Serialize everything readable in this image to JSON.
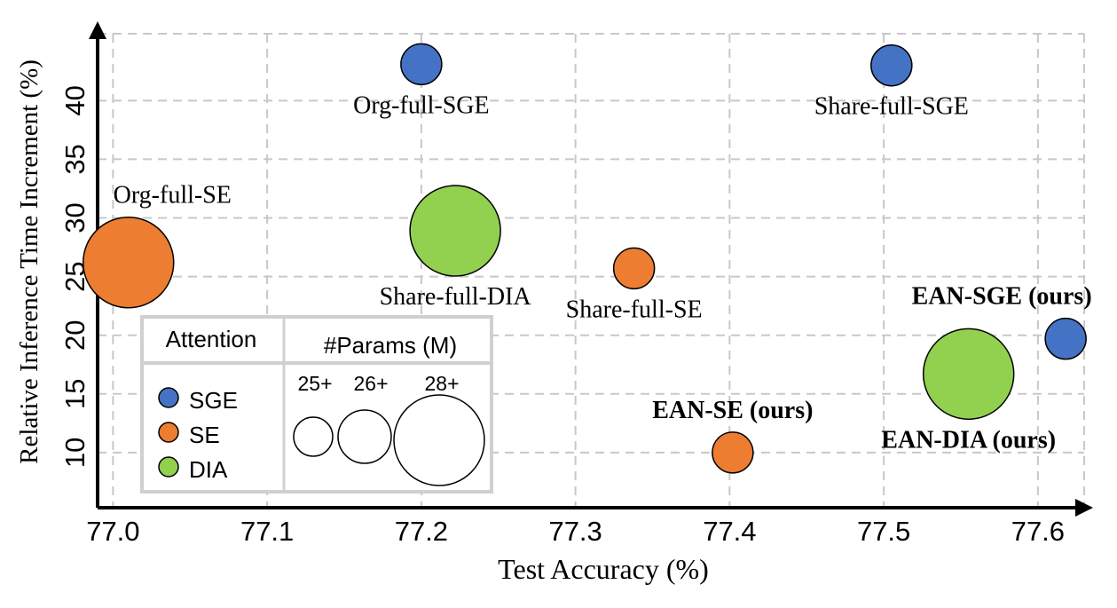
{
  "chart_data": {
    "type": "scatter",
    "subtype": "bubble",
    "xlabel": "Test Accuracy (%)",
    "ylabel": "Relative Inference Time Increment (%)",
    "xlim": [
      76.99,
      77.63
    ],
    "ylim": [
      5.3,
      45.7
    ],
    "xticks": [
      77.0,
      77.1,
      77.2,
      77.3,
      77.4,
      77.5,
      77.6
    ],
    "xtick_labels": [
      "77.0",
      "77.1",
      "77.2",
      "77.3",
      "77.4",
      "77.5",
      "77.6"
    ],
    "yticks": [
      10,
      15,
      20,
      25,
      30,
      35,
      40
    ],
    "ytick_labels": [
      "10",
      "15",
      "20",
      "25",
      "30",
      "35",
      "40"
    ],
    "grid": true,
    "colors": {
      "SGE": "#4472c4",
      "SE": "#ed7d31",
      "DIA": "#92d050"
    },
    "points": [
      {
        "label": "Org-full-SGE",
        "attention": "SGE",
        "x": 77.2,
        "y": 43.1,
        "size_class": "25+",
        "bold": false,
        "label_pos": "below"
      },
      {
        "label": "Share-full-SGE",
        "attention": "SGE",
        "x": 77.505,
        "y": 43.0,
        "size_class": "25+",
        "bold": false,
        "label_pos": "below"
      },
      {
        "label": "Org-full-SE",
        "attention": "SE",
        "x": 77.01,
        "y": 26.2,
        "size_class": "28+",
        "bold": false,
        "label_pos": "above"
      },
      {
        "label": "Share-full-DIA",
        "attention": "DIA",
        "x": 77.222,
        "y": 28.9,
        "size_class": "28+",
        "bold": false,
        "label_pos": "below"
      },
      {
        "label": "Share-full-SE",
        "attention": "SE",
        "x": 77.338,
        "y": 25.7,
        "size_class": "25+",
        "bold": false,
        "label_pos": "below"
      },
      {
        "label": "EAN-SGE (ours)",
        "attention": "SGE",
        "x": 77.618,
        "y": 19.7,
        "size_class": "25+",
        "bold": true,
        "label_pos": "above-left"
      },
      {
        "label": "EAN-DIA (ours)",
        "attention": "DIA",
        "x": 77.555,
        "y": 16.7,
        "size_class": "28+",
        "bold": true,
        "label_pos": "below"
      },
      {
        "label": "EAN-SE (ours)",
        "attention": "SE",
        "x": 77.402,
        "y": 10.0,
        "size_class": "25+",
        "bold": true,
        "label_pos": "above"
      }
    ],
    "legend": {
      "position": "bottom-left",
      "attention_header": "Attention",
      "params_header": "#Params (M)",
      "entries": [
        {
          "name": "SGE",
          "color": "#4472c4"
        },
        {
          "name": "SE",
          "color": "#ed7d31"
        },
        {
          "name": "DIA",
          "color": "#92d050"
        }
      ],
      "size_labels": [
        "25+",
        "26+",
        "28+"
      ]
    }
  }
}
